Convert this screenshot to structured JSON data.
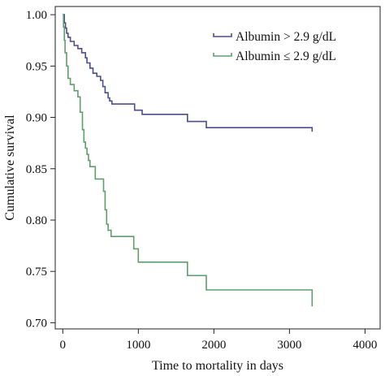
{
  "chart_data": {
    "type": "line",
    "step": true,
    "xlabel": "Time to mortality in days",
    "ylabel": "Cumulative survival",
    "xlim": [
      -100,
      4200
    ],
    "ylim": [
      0.694,
      1.008
    ],
    "xticks": [
      0,
      1000,
      2000,
      3000,
      4000
    ],
    "xtick_labels": [
      "0",
      "1000",
      "2000",
      "3000",
      "4000"
    ],
    "yticks": [
      0.7,
      0.75,
      0.8,
      0.85,
      0.9,
      0.95,
      1.0
    ],
    "ytick_labels": [
      "0.70",
      "0.75",
      "0.80",
      "0.85",
      "0.90",
      "0.95",
      "1.00"
    ],
    "grid": false,
    "legend_position": "top-right",
    "series": [
      {
        "name": "Albumin > 2.9 g/dL",
        "color": "#4a4f8c",
        "x": [
          0,
          20,
          35,
          50,
          70,
          100,
          150,
          200,
          250,
          300,
          320,
          360,
          400,
          450,
          500,
          530,
          560,
          600,
          620,
          650,
          950,
          1050,
          1650,
          1900,
          3300
        ],
        "y": [
          1.0,
          0.992,
          0.987,
          0.982,
          0.978,
          0.974,
          0.97,
          0.967,
          0.963,
          0.958,
          0.953,
          0.948,
          0.943,
          0.94,
          0.936,
          0.93,
          0.924,
          0.919,
          0.916,
          0.913,
          0.907,
          0.903,
          0.896,
          0.89,
          0.886
        ]
      },
      {
        "name": "Albumin ≤ 2.9 g/dL",
        "color": "#5f9e6e",
        "x": [
          0,
          10,
          20,
          30,
          50,
          70,
          100,
          150,
          200,
          230,
          260,
          280,
          300,
          320,
          340,
          360,
          390,
          430,
          500,
          540,
          560,
          580,
          600,
          640,
          940,
          1000,
          1650,
          1900,
          3300
        ],
        "y": [
          1.0,
          0.988,
          0.975,
          0.963,
          0.95,
          0.938,
          0.932,
          0.926,
          0.92,
          0.905,
          0.888,
          0.876,
          0.87,
          0.864,
          0.858,
          0.852,
          0.852,
          0.84,
          0.84,
          0.828,
          0.81,
          0.796,
          0.79,
          0.784,
          0.772,
          0.759,
          0.746,
          0.732,
          0.716
        ]
      }
    ]
  }
}
